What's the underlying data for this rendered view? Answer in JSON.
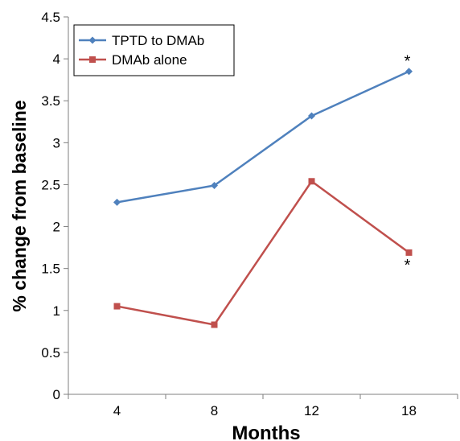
{
  "chart_data": {
    "type": "line",
    "xlabel": "Months",
    "ylabel": "% change from baseline",
    "categories": [
      "4",
      "8",
      "12",
      "18"
    ],
    "ylim": [
      0,
      4.5
    ],
    "yticks": [
      "0",
      "0.5",
      "1",
      "1.5",
      "2",
      "2.5",
      "3",
      "3.5",
      "4",
      "4.5"
    ],
    "grid": false,
    "legend": "top-left",
    "series": [
      {
        "name": "TPTD to DMAb",
        "values": [
          2.29,
          2.49,
          3.32,
          3.85
        ],
        "color": "#4F81BD",
        "marker": "diamond"
      },
      {
        "name": "DMAb alone",
        "values": [
          1.05,
          0.83,
          2.54,
          1.69
        ],
        "color": "#C0504D",
        "marker": "square"
      }
    ],
    "annotations": [
      {
        "text": "*",
        "series": 0,
        "category": "18",
        "position": "above"
      },
      {
        "text": "*",
        "series": 1,
        "category": "18",
        "position": "below"
      }
    ]
  }
}
